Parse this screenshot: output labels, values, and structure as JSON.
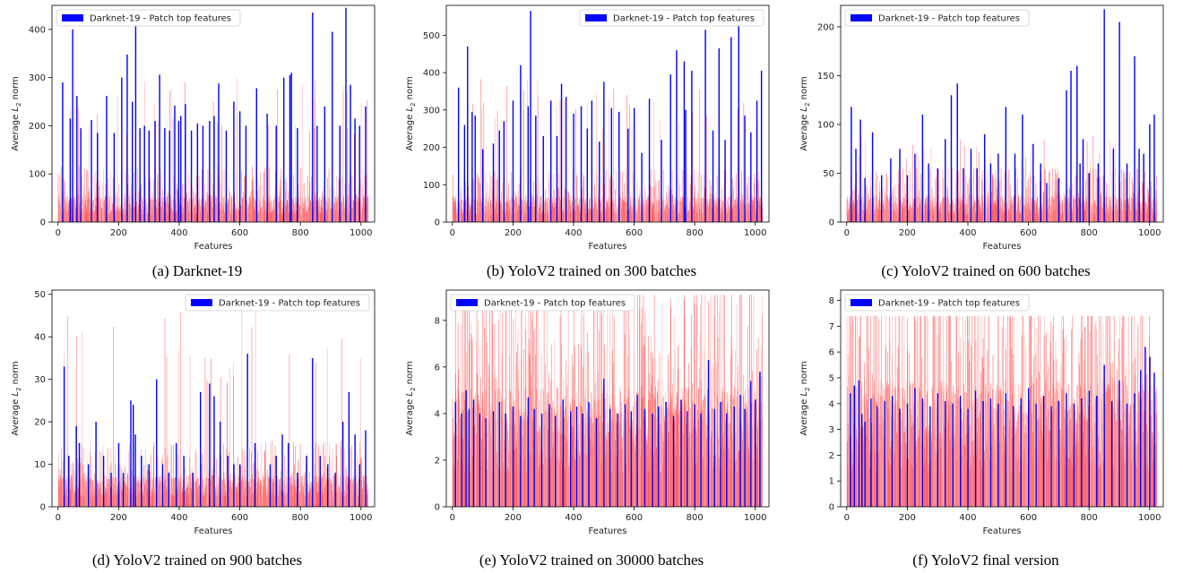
{
  "figure": {
    "captions": [
      "(a) Darknet-19",
      "(b) YoloV2 trained on 300 batches",
      "(c) YoloV2 trained on 600 batches",
      "(d) YoloV2 trained on 900 batches",
      "(e) YoloV2 trained on 30000 batches",
      "(f) YoloV2 final version"
    ]
  },
  "colors": {
    "top_features": "#0000ff",
    "all_features": "#ff4b4b",
    "all_features_light": "#ff9a9a"
  },
  "chart_data": [
    {
      "type": "bar",
      "caption": "(a) Darknet-19",
      "xlabel": "Features",
      "ylabel": "Average L2 norm",
      "xlim": [
        -20,
        1045
      ],
      "ylim": [
        0,
        450
      ],
      "xticks": [
        0,
        200,
        400,
        600,
        800,
        1000
      ],
      "yticks": [
        0,
        100,
        200,
        300,
        400
      ],
      "legend": {
        "label": "Darknet-19 - Patch top features",
        "position": "top-left"
      },
      "background_series": {
        "name": "",
        "bar_count": 1024,
        "typical_level": 45,
        "max": 300
      },
      "series": [
        {
          "name": "Darknet-19 - Patch top features",
          "x": [
            15,
            40,
            48,
            62,
            75,
            110,
            130,
            160,
            185,
            210,
            228,
            245,
            256,
            270,
            285,
            300,
            320,
            335,
            352,
            368,
            385,
            398,
            405,
            420,
            440,
            460,
            478,
            500,
            515,
            530,
            555,
            580,
            600,
            620,
            655,
            690,
            720,
            745,
            765,
            770,
            790,
            840,
            855,
            880,
            905,
            930,
            950,
            965,
            980,
            995,
            1015
          ],
          "values": [
            290,
            215,
            400,
            262,
            195,
            212,
            185,
            262,
            185,
            300,
            348,
            250,
            420,
            195,
            200,
            190,
            210,
            306,
            195,
            190,
            242,
            210,
            220,
            245,
            190,
            205,
            200,
            210,
            220,
            288,
            190,
            250,
            230,
            200,
            278,
            225,
            200,
            300,
            305,
            310,
            195,
            435,
            200,
            240,
            395,
            200,
            445,
            285,
            215,
            200,
            240
          ]
        }
      ]
    },
    {
      "type": "bar",
      "caption": "(b) YoloV2 trained on 300 batches",
      "xlabel": "Features",
      "ylabel": "Average L2 norm",
      "xlim": [
        -20,
        1045
      ],
      "ylim": [
        0,
        580
      ],
      "xticks": [
        0,
        200,
        400,
        600,
        800,
        1000
      ],
      "yticks": [
        0,
        100,
        200,
        300,
        400,
        500
      ],
      "legend": {
        "label": "Darknet-19 - Patch top features",
        "position": "top-right"
      },
      "background_series": {
        "name": "",
        "bar_count": 1024,
        "typical_level": 55,
        "max": 400
      },
      "series": [
        {
          "name": "Darknet-19 - Patch top features",
          "x": [
            20,
            40,
            50,
            65,
            75,
            100,
            135,
            155,
            170,
            200,
            225,
            250,
            258,
            275,
            300,
            325,
            345,
            360,
            375,
            400,
            425,
            445,
            460,
            485,
            500,
            525,
            550,
            580,
            600,
            625,
            650,
            690,
            720,
            740,
            765,
            770,
            790,
            835,
            860,
            880,
            900,
            920,
            945,
            965,
            985,
            1005,
            1020
          ],
          "values": [
            360,
            260,
            470,
            295,
            285,
            195,
            210,
            245,
            270,
            325,
            420,
            310,
            565,
            285,
            230,
            325,
            230,
            370,
            335,
            290,
            310,
            250,
            325,
            215,
            375,
            305,
            295,
            250,
            305,
            185,
            330,
            220,
            395,
            460,
            430,
            300,
            405,
            515,
            245,
            465,
            220,
            495,
            570,
            285,
            240,
            325,
            405
          ]
        }
      ]
    },
    {
      "type": "bar",
      "caption": "(c) YoloV2 trained on 600 batches",
      "xlabel": "Features",
      "ylabel": "Average L2 norm",
      "xlim": [
        -20,
        1045
      ],
      "ylim": [
        0,
        222
      ],
      "xticks": [
        0,
        200,
        400,
        600,
        800,
        1000
      ],
      "yticks": [
        0,
        50,
        100,
        150,
        200
      ],
      "legend": {
        "label": "Darknet-19 - Patch top features",
        "position": "top-left"
      },
      "background_series": {
        "name": "",
        "bar_count": 1024,
        "typical_level": 22,
        "max": 90
      },
      "series": [
        {
          "name": "Darknet-19 - Patch top features",
          "x": [
            15,
            30,
            45,
            60,
            85,
            115,
            145,
            175,
            200,
            225,
            250,
            270,
            300,
            325,
            345,
            365,
            385,
            410,
            430,
            455,
            475,
            500,
            525,
            555,
            580,
            615,
            640,
            660,
            700,
            725,
            740,
            760,
            770,
            780,
            800,
            830,
            850,
            880,
            900,
            925,
            950,
            965,
            980,
            1000,
            1015
          ],
          "values": [
            118,
            75,
            105,
            45,
            92,
            48,
            65,
            75,
            48,
            70,
            110,
            60,
            55,
            85,
            130,
            142,
            55,
            75,
            55,
            90,
            60,
            70,
            118,
            70,
            110,
            80,
            60,
            40,
            45,
            135,
            155,
            160,
            60,
            85,
            50,
            60,
            218,
            75,
            205,
            60,
            170,
            75,
            70,
            100,
            110
          ]
        }
      ]
    },
    {
      "type": "bar",
      "caption": "(d) YoloV2 trained on 900 batches",
      "xlabel": "Features",
      "ylabel": "Average L2 norm",
      "xlim": [
        -20,
        1045
      ],
      "ylim": [
        0,
        51
      ],
      "xticks": [
        0,
        200,
        400,
        600,
        800,
        1000
      ],
      "yticks": [
        0,
        10,
        20,
        30,
        40,
        50
      ],
      "legend": {
        "label": "Darknet-19 - Patch top features",
        "position": "top-right"
      },
      "background_series": {
        "name": "",
        "bar_count": 1024,
        "typical_level": 6,
        "max": 48
      },
      "series": [
        {
          "name": "Darknet-19 - Patch top features",
          "x": [
            20,
            35,
            60,
            70,
            100,
            125,
            150,
            175,
            200,
            215,
            240,
            248,
            255,
            275,
            300,
            325,
            345,
            365,
            390,
            415,
            445,
            470,
            500,
            515,
            535,
            560,
            580,
            600,
            625,
            650,
            700,
            720,
            740,
            760,
            790,
            820,
            840,
            865,
            890,
            915,
            940,
            960,
            980,
            995,
            1015
          ],
          "values": [
            33,
            12,
            19,
            15,
            10,
            20,
            12,
            8,
            15,
            8,
            25,
            24,
            17,
            12,
            10,
            30,
            10,
            8,
            15,
            12,
            8,
            27,
            29,
            26,
            20,
            12,
            10,
            10,
            36,
            15,
            10,
            12,
            17,
            15,
            8,
            12,
            35,
            12,
            10,
            8,
            20,
            27,
            17,
            10,
            18
          ]
        }
      ]
    },
    {
      "type": "bar",
      "caption": "(e) YoloV2 trained on 30000 batches",
      "xlabel": "Features",
      "ylabel": "Average L2 norm",
      "xlim": [
        -20,
        1045
      ],
      "ylim": [
        0,
        9.3
      ],
      "xticks": [
        0,
        200,
        400,
        600,
        800,
        1000
      ],
      "yticks": [
        0,
        2,
        4,
        6,
        8
      ],
      "legend": {
        "label": "Darknet-19 - Patch top features",
        "position": "top-left"
      },
      "background_series": {
        "name": "",
        "bar_count": 1024,
        "typical_level": 4.1,
        "max": 9.1
      },
      "series": [
        {
          "name": "Darknet-19 - Patch top features",
          "x": [
            10,
            30,
            45,
            55,
            70,
            90,
            110,
            135,
            155,
            175,
            200,
            225,
            250,
            270,
            295,
            320,
            340,
            365,
            390,
            410,
            430,
            450,
            475,
            500,
            520,
            545,
            570,
            590,
            610,
            635,
            660,
            680,
            705,
            730,
            755,
            775,
            800,
            820,
            845,
            865,
            885,
            905,
            930,
            950,
            965,
            985,
            1000,
            1015
          ],
          "values": [
            4.5,
            4.0,
            5.0,
            4.2,
            4.6,
            4.0,
            3.8,
            4.1,
            4.5,
            4.0,
            4.3,
            3.9,
            4.7,
            4.2,
            4.0,
            4.4,
            3.9,
            4.6,
            4.1,
            4.3,
            4.0,
            4.5,
            3.8,
            5.5,
            4.2,
            4.0,
            4.4,
            4.1,
            4.8,
            4.2,
            4.0,
            4.3,
            4.5,
            3.9,
            4.6,
            4.1,
            4.4,
            4.0,
            6.3,
            4.2,
            4.5,
            4.0,
            4.3,
            4.8,
            4.2,
            5.4,
            4.6,
            5.8
          ]
        }
      ]
    },
    {
      "type": "bar",
      "caption": "(f) YoloV2 final version",
      "xlabel": "Features",
      "ylabel": "Average L2 norm",
      "xlim": [
        -20,
        1045
      ],
      "ylim": [
        0,
        8.4
      ],
      "xticks": [
        0,
        200,
        400,
        600,
        800,
        1000
      ],
      "yticks": [
        0,
        1,
        2,
        3,
        4,
        5,
        6,
        7,
        8
      ],
      "legend": {
        "label": "Darknet-19 - Patch top features",
        "position": "top-left"
      },
      "background_series": {
        "name": "",
        "bar_count": 1024,
        "typical_level": 3.9,
        "max": 7.4
      },
      "series": [
        {
          "name": "Darknet-19 - Patch top features",
          "x": [
            12,
            25,
            40,
            50,
            60,
            80,
            100,
            125,
            150,
            175,
            200,
            225,
            250,
            275,
            300,
            325,
            350,
            375,
            400,
            425,
            450,
            475,
            500,
            525,
            550,
            575,
            600,
            625,
            650,
            675,
            700,
            725,
            750,
            775,
            800,
            825,
            850,
            875,
            900,
            925,
            950,
            970,
            985,
            1000,
            1015
          ],
          "values": [
            4.4,
            4.7,
            4.9,
            3.6,
            3.3,
            4.2,
            3.9,
            4.1,
            4.3,
            3.8,
            4.0,
            4.6,
            4.2,
            3.9,
            4.4,
            4.1,
            4.0,
            4.3,
            3.8,
            4.5,
            4.1,
            4.2,
            4.0,
            4.4,
            3.9,
            4.2,
            4.6,
            4.0,
            4.3,
            3.9,
            4.1,
            4.4,
            4.0,
            4.2,
            4.5,
            4.3,
            5.5,
            4.1,
            4.9,
            4.0,
            4.4,
            5.3,
            6.2,
            5.8,
            5.2
          ]
        }
      ]
    }
  ]
}
